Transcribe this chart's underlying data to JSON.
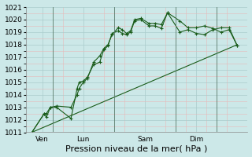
{
  "background_color": "#cce8e8",
  "grid_color": "#aacccc",
  "line_color": "#1a5c1a",
  "ylim": [
    1011,
    1021
  ],
  "yticks": [
    1011,
    1012,
    1013,
    1014,
    1015,
    1016,
    1017,
    1018,
    1019,
    1020,
    1021
  ],
  "xlabel": "Pression niveau de la mer( hPa )",
  "xlabel_fontsize": 8,
  "tick_fontsize": 6.5,
  "vlines_x": [
    1,
    4,
    7,
    9
  ],
  "day_labels": [
    [
      "Ven",
      0.5
    ],
    [
      "Lun",
      2.5
    ],
    [
      "Sam",
      5.5
    ],
    [
      "Dim",
      8.0
    ]
  ],
  "xlim": [
    -0.3,
    10.5
  ],
  "series1_x": [
    0,
    0.6,
    0.7,
    0.9,
    1.2,
    1.9,
    2.2,
    2.3,
    2.5,
    2.7,
    3.0,
    3.3,
    3.5,
    3.7,
    3.9,
    4.2,
    4.4,
    4.6,
    4.8,
    5.0,
    5.3,
    5.7,
    6.0,
    6.3,
    6.6,
    7.2,
    7.6,
    8.0,
    8.4,
    8.8,
    9.2,
    9.6,
    10.0
  ],
  "series1_y": [
    1011.0,
    1012.5,
    1012.5,
    1013.0,
    1013.1,
    1013.0,
    1014.0,
    1014.5,
    1015.0,
    1015.3,
    1016.6,
    1017.1,
    1017.7,
    1018.0,
    1018.8,
    1019.35,
    1019.2,
    1018.9,
    1019.1,
    1020.0,
    1020.1,
    1019.7,
    1019.7,
    1019.6,
    1020.55,
    1019.9,
    1019.35,
    1019.35,
    1019.5,
    1019.3,
    1019.0,
    1019.2,
    1017.9
  ],
  "series2_x": [
    0,
    0.6,
    0.7,
    0.9,
    1.2,
    1.9,
    2.2,
    2.3,
    2.5,
    2.7,
    3.0,
    3.3,
    3.5,
    3.7,
    3.9,
    4.2,
    4.4,
    4.6,
    4.8,
    5.0,
    5.3,
    5.7,
    6.0,
    6.3,
    6.6,
    7.2,
    7.6,
    8.0,
    8.4,
    8.8,
    9.2,
    9.6,
    10.0
  ],
  "series2_y": [
    1011.0,
    1012.5,
    1012.2,
    1013.0,
    1013.0,
    1012.1,
    1014.5,
    1015.0,
    1015.1,
    1015.4,
    1016.4,
    1016.6,
    1017.6,
    1017.9,
    1018.9,
    1019.1,
    1018.9,
    1018.8,
    1019.0,
    1019.9,
    1020.0,
    1019.5,
    1019.5,
    1019.3,
    1020.55,
    1019.0,
    1019.2,
    1018.9,
    1018.8,
    1019.2,
    1019.35,
    1019.35,
    1017.9
  ],
  "series3_x": [
    0,
    10.0
  ],
  "series3_y": [
    1011.0,
    1018.0
  ]
}
